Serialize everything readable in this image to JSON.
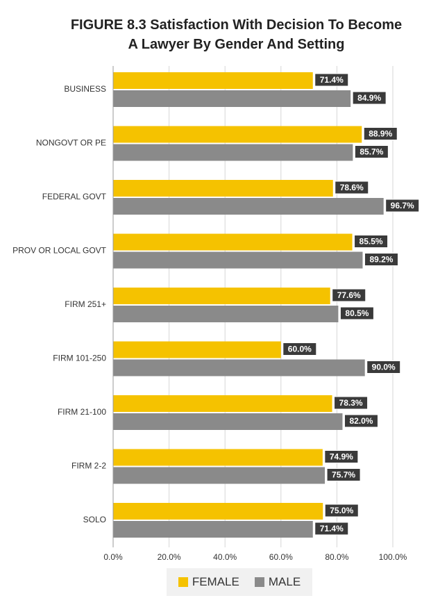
{
  "title": {
    "line1": "FIGURE 8.3 Satisfaction With Decision To Become",
    "line2": "A Lawyer By Gender And Setting"
  },
  "chart_data": {
    "type": "bar",
    "orientation": "horizontal",
    "categories": [
      "BUSINESS",
      "NONGOVT OR PE",
      "FEDERAL GOVT",
      "PROV OR LOCAL GOVT",
      "FIRM 251+",
      "FIRM 101-250",
      "FIRM 21-100",
      "FIRM 2-2",
      "SOLO"
    ],
    "series": [
      {
        "name": "FEMALE",
        "color": "#f5c200",
        "values": [
          71.4,
          88.9,
          78.6,
          85.5,
          77.6,
          60.0,
          78.3,
          74.9,
          75.0
        ],
        "labels": [
          "71.4%",
          "88.9%",
          "78.6%",
          "85.5%",
          "77.6%",
          "60.0%",
          "78.3%",
          "74.9%",
          "75.0%"
        ]
      },
      {
        "name": "MALE",
        "color": "#8a8a8a",
        "values": [
          84.9,
          85.7,
          96.7,
          89.2,
          80.5,
          90.0,
          82.0,
          75.7,
          71.4
        ],
        "labels": [
          "84.9%",
          "85.7%",
          "96.7%",
          "89.2%",
          "80.5%",
          "90.0%",
          "82.0%",
          "75.7%",
          "71.4%"
        ]
      }
    ],
    "xlim": [
      0,
      100
    ],
    "xticks": [
      0,
      20,
      40,
      60,
      80,
      100
    ],
    "xtick_labels": [
      "0.0%",
      "20.0%",
      "40.0%",
      "60.0%",
      "80.0%",
      "100.0%"
    ],
    "grid": true,
    "legend_position": "bottom",
    "label_box_color": "#3a3a3a"
  }
}
